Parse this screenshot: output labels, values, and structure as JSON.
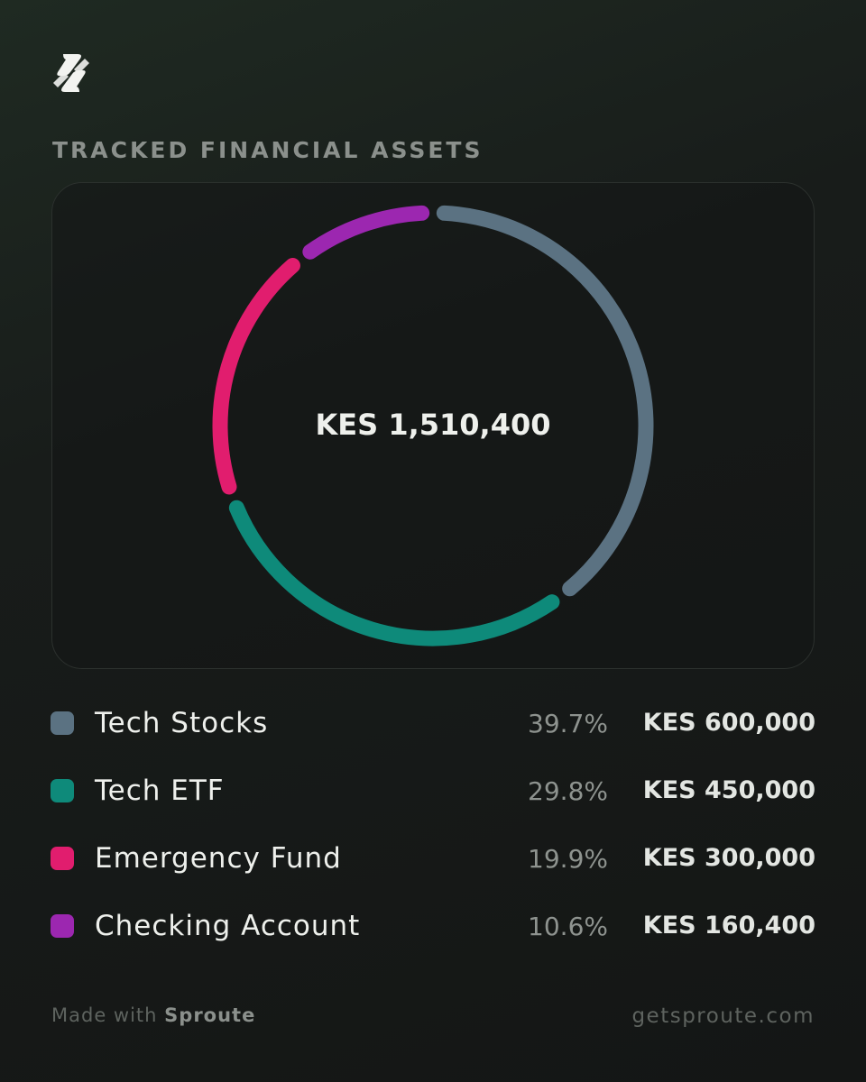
{
  "header": {
    "section_title": "TRACKED FINANCIAL ASSETS"
  },
  "chart_data": {
    "type": "pie",
    "variant": "donut",
    "total_label": "KES 1,510,400",
    "categories": [
      "Tech Stocks",
      "Tech ETF",
      "Emergency Fund",
      "Checking Account"
    ],
    "values": [
      600000,
      450000,
      300000,
      160400
    ],
    "percent_labels": [
      "39.7%",
      "29.8%",
      "19.9%",
      "10.6%"
    ],
    "value_labels": [
      "KES 600,000",
      "KES 450,000",
      "KES 300,000",
      "KES 160,400"
    ],
    "colors": [
      "#5b7282",
      "#0e8a7a",
      "#e11d6e",
      "#9c27b0"
    ]
  },
  "footer": {
    "made_with": "Made with",
    "brand": "Sproute",
    "url": "getsproute.com"
  }
}
